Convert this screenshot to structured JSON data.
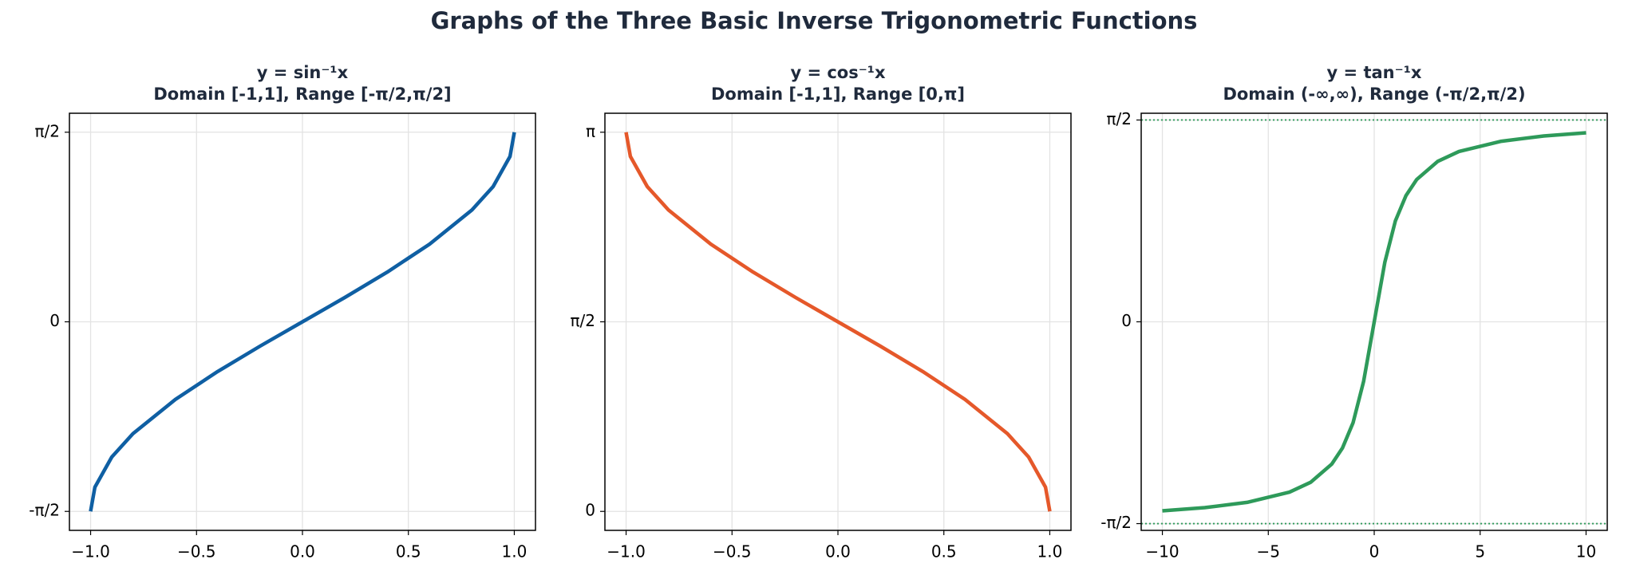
{
  "title": "Graphs of the Three Basic Inverse Trigonometric Functions",
  "chart_data": [
    {
      "type": "line",
      "title": "y = sin⁻¹x",
      "subtitle": "Domain [-1,1], Range [-π/2,π/2]",
      "color": "#0f5fa3",
      "grid": true,
      "x": [
        -1,
        -0.98,
        -0.9,
        -0.8,
        -0.6,
        -0.4,
        -0.2,
        0,
        0.2,
        0.4,
        0.6,
        0.8,
        0.9,
        0.98,
        1
      ],
      "values": [
        -1.5708,
        -1.3705,
        -1.1198,
        -0.9273,
        -0.6435,
        -0.4115,
        -0.2014,
        0,
        0.2014,
        0.4115,
        0.6435,
        0.9273,
        1.1198,
        1.3705,
        1.5708
      ],
      "xlim": [
        -1.1,
        1.1
      ],
      "ylim": [
        -1.7279,
        1.7279
      ],
      "xticks": [
        {
          "value": -1,
          "label": "−1.0"
        },
        {
          "value": -0.5,
          "label": "−0.5"
        },
        {
          "value": 0,
          "label": "0.0"
        },
        0.5,
        {
          "value": 1,
          "label": "1.0"
        }
      ],
      "yticks": [
        {
          "value": -1.5708,
          "label": "-π/2"
        },
        0,
        {
          "value": 1.5708,
          "label": "π/2"
        }
      ]
    },
    {
      "type": "line",
      "title": "y = cos⁻¹x",
      "subtitle": "Domain [-1,1], Range [0,π]",
      "color": "#e5582a",
      "grid": true,
      "x": [
        -1,
        -0.98,
        -0.9,
        -0.8,
        -0.6,
        -0.4,
        -0.2,
        0,
        0.2,
        0.4,
        0.6,
        0.8,
        0.9,
        0.98,
        1
      ],
      "values": [
        3.1416,
        2.9413,
        2.6906,
        2.4981,
        2.2143,
        1.9823,
        1.7722,
        1.5708,
        1.3694,
        1.1593,
        0.9273,
        0.6435,
        0.451,
        0.2003,
        0
      ],
      "xlim": [
        -1.1,
        1.1
      ],
      "ylim": [
        -0.1571,
        3.2987
      ],
      "xticks": [
        {
          "value": -1,
          "label": "−1.0"
        },
        {
          "value": -0.5,
          "label": "−0.5"
        },
        {
          "value": 0,
          "label": "0.0"
        },
        0.5,
        {
          "value": 1,
          "label": "1.0"
        }
      ],
      "yticks": [
        0,
        {
          "value": 1.5708,
          "label": "π/2"
        },
        {
          "value": 3.1416,
          "label": "π"
        }
      ]
    },
    {
      "type": "line",
      "title": "y = tan⁻¹x",
      "subtitle": "Domain (-∞,∞), Range (-π/2,π/2)",
      "color": "#2e9a5a",
      "grid": true,
      "x": [
        -10,
        -8,
        -6,
        -4,
        -3,
        -2,
        -1.5,
        -1,
        -0.5,
        0,
        0.5,
        1,
        1.5,
        2,
        3,
        4,
        6,
        8,
        10
      ],
      "values": [
        -1.4711,
        -1.4464,
        -1.4056,
        -1.3258,
        -1.249,
        -1.1071,
        -0.9828,
        -0.7854,
        -0.4636,
        0,
        0.4636,
        0.7854,
        0.9828,
        1.1071,
        1.249,
        1.3258,
        1.4056,
        1.4464,
        1.4711
      ],
      "asymptotes": [
        1.5708,
        -1.5708
      ],
      "xlim": [
        -11,
        11
      ],
      "ylim": [
        -1.6233,
        1.6233
      ],
      "xticks": [
        {
          "value": -10,
          "label": "−10"
        },
        {
          "value": -5,
          "label": "−5"
        },
        0,
        5,
        10
      ],
      "yticks": [
        {
          "value": -1.5708,
          "label": "-π/2"
        },
        0,
        {
          "value": 1.5708,
          "label": "π/2"
        }
      ]
    }
  ]
}
